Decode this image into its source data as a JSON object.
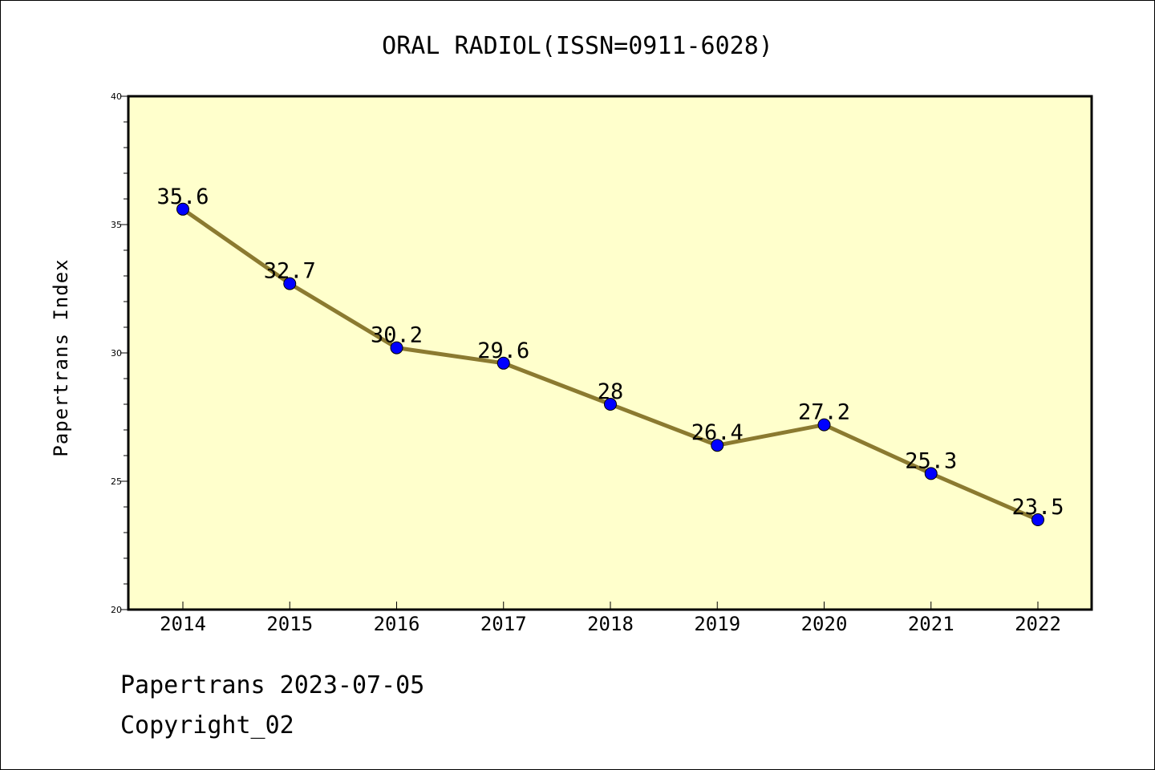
{
  "chart_data": {
    "type": "line",
    "title": "ORAL RADIOL(ISSN=0911-6028)",
    "xlabel": "",
    "ylabel": "Papertrans Index",
    "categories": [
      "2014",
      "2015",
      "2016",
      "2017",
      "2018",
      "2019",
      "2020",
      "2021",
      "2022"
    ],
    "series": [
      {
        "values": [
          35.6,
          32.7,
          30.2,
          29.6,
          28,
          26.4,
          27.2,
          25.3,
          23.5
        ],
        "labels": [
          "35.6",
          "32.7",
          "30.2",
          "29.6",
          "28",
          "26.4",
          "27.2",
          "25.3",
          "23.5"
        ]
      }
    ],
    "ylim": [
      20,
      40
    ],
    "yticks": [
      "20",
      "25",
      "30",
      "35",
      "40"
    ],
    "grid": false,
    "colors": {
      "plot_background": "#ffffcc",
      "line": "#8b7a30",
      "marker": "#0000ff"
    }
  },
  "footer": {
    "line1": "Papertrans 2023-07-05",
    "line2": "Copyright_02"
  }
}
